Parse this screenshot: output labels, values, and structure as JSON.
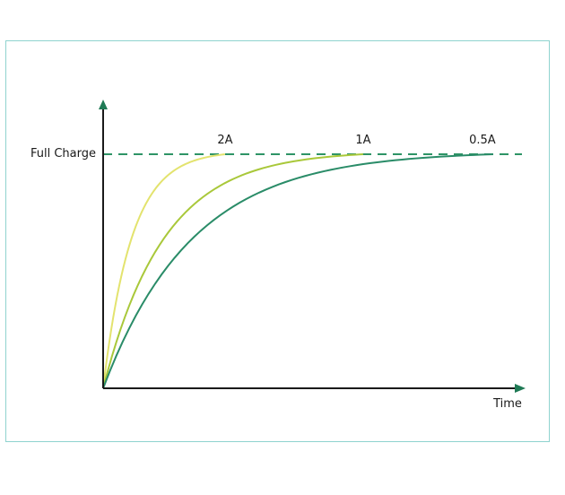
{
  "chart_data": {
    "type": "line",
    "xlabel": "Time",
    "ylabel": "",
    "reference_line": {
      "label": "Full Charge",
      "y": 1.0,
      "style": "dashed",
      "color": "#2e9466"
    },
    "axes": {
      "color": "#1a1a1a",
      "arrow_color": "#1f7a55"
    },
    "xlim": [
      0,
      1.0
    ],
    "ylim": [
      0,
      1.0
    ],
    "grid": false,
    "legend": "none",
    "series": [
      {
        "name": "2A",
        "color": "#e3e36e",
        "tau": 0.07,
        "x_end": 0.3
      },
      {
        "name": "1A",
        "color": "#a9c83a",
        "tau": 0.15,
        "x_end": 0.64
      },
      {
        "name": "0.5A",
        "color": "#2a8c68",
        "tau": 0.22,
        "x_end": 0.96
      }
    ]
  }
}
